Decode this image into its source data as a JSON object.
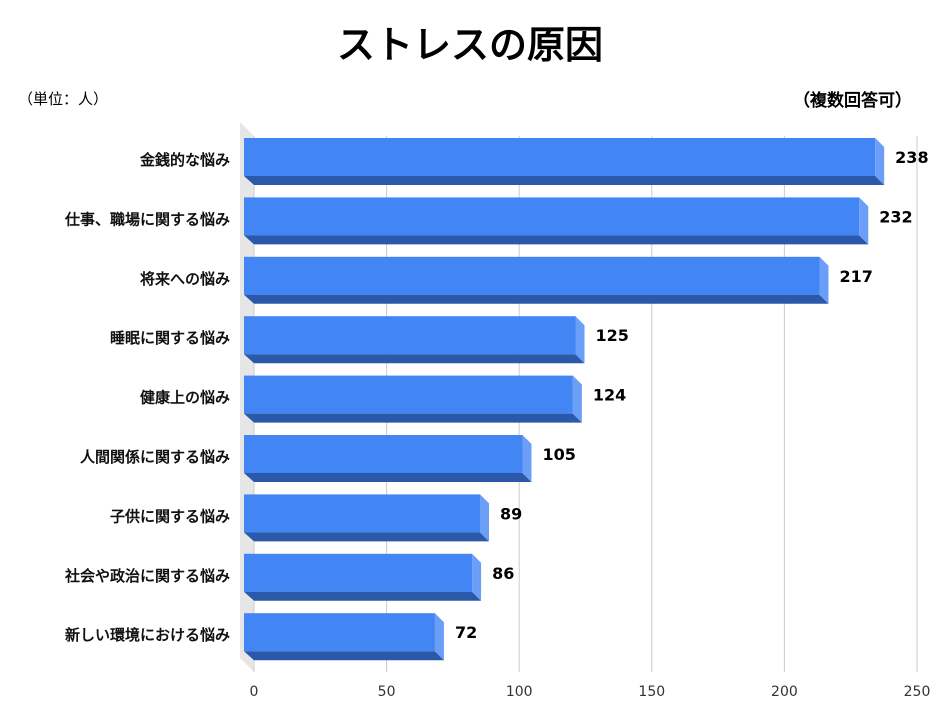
{
  "chart_data": {
    "type": "bar",
    "orientation": "horizontal",
    "title": "ストレスの原因",
    "unit_label": "（単位：人）",
    "note": "（複数回答可）",
    "categories": [
      "金銭的な悩み",
      "仕事、職場に関する悩み",
      "将来への悩み",
      "睡眠に関する悩み",
      "健康上の悩み",
      "人間関係に関する悩み",
      "子供に関する悩み",
      "社会や政治に関する悩み",
      "新しい環境における悩み"
    ],
    "values": [
      238,
      232,
      217,
      125,
      124,
      105,
      89,
      86,
      72
    ],
    "xlim": [
      0,
      250
    ],
    "xticks": [
      "0",
      "50",
      "100",
      "150",
      "200",
      "250"
    ],
    "grid": true,
    "colors": {
      "front": "#4285f4",
      "bottom": "#2b58a9",
      "side": "#6a9ef7",
      "wall": "#e6e6e6",
      "grid": "#cccccc"
    }
  }
}
